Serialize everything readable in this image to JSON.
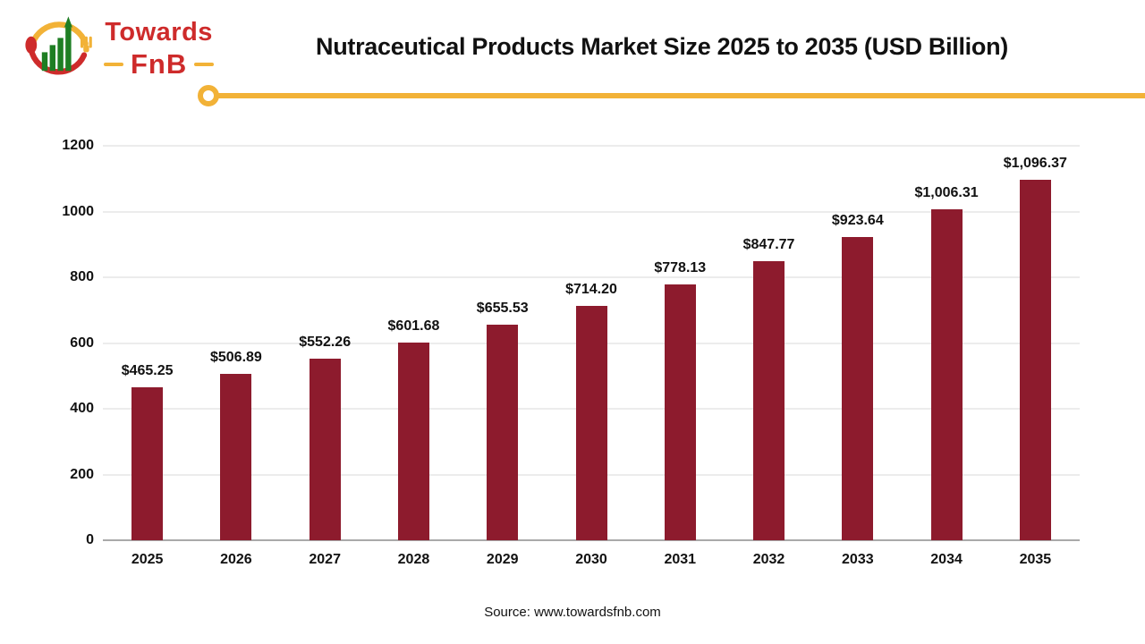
{
  "header": {
    "logo": {
      "towards": "Towards",
      "fnb": "FnB"
    },
    "title": "Nutraceutical Products Market Size 2025 to 2035 (USD Billion)"
  },
  "chart_data": {
    "type": "bar",
    "categories": [
      "2025",
      "2026",
      "2027",
      "2028",
      "2029",
      "2030",
      "2031",
      "2032",
      "2033",
      "2034",
      "2035"
    ],
    "values": [
      465.25,
      506.89,
      552.26,
      601.68,
      655.53,
      714.2,
      778.13,
      847.77,
      923.64,
      1006.31,
      1096.37
    ],
    "value_labels": [
      "$465.25",
      "$506.89",
      "$552.26",
      "$601.68",
      "$655.53",
      "$714.20",
      "$778.13",
      "$847.77",
      "$923.64",
      "$1,006.31",
      "$1,096.37"
    ],
    "title": "Nutraceutical Products Market Size 2025 to 2035 (USD Billion)",
    "xlabel": "",
    "ylabel": "",
    "ylim": [
      0,
      1200
    ],
    "yticks": [
      0,
      200,
      400,
      600,
      800,
      1000,
      1200
    ],
    "grid": true,
    "legend": "none",
    "bar_color": "#8D1B2D"
  },
  "footer": {
    "source": "Source: www.towardsfnb.com"
  },
  "colors": {
    "bar": "#8D1B2D",
    "accent_yellow": "#F2B237",
    "logo_red": "#CE2B2B",
    "logo_green": "#1E7E23",
    "gridline": "#ECECEC",
    "baseline": "#A9A9A9"
  }
}
